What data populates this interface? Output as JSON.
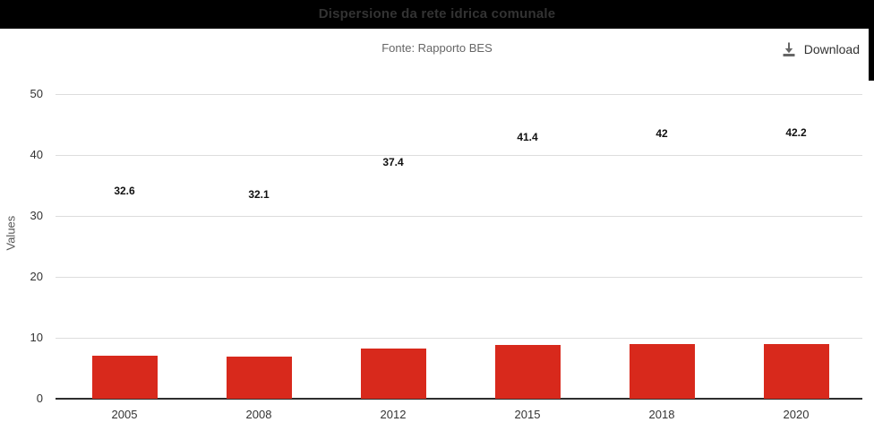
{
  "header": {
    "title": "Dispersione da rete idrica comunale",
    "source": "Fonte: Rapporto BES"
  },
  "toolbar": {
    "download_label": "Download",
    "download_icon": "download-icon"
  },
  "chart_data": {
    "type": "bar",
    "title": "Dispersione da rete idrica comunale",
    "subtitle": "Fonte: Rapporto BES",
    "categories": [
      "2005",
      "2008",
      "2012",
      "2015",
      "2018",
      "2020"
    ],
    "values": [
      32.6,
      32.1,
      37.4,
      41.4,
      42,
      42.2
    ],
    "value_labels": [
      "32.6",
      "32.1",
      "37.4",
      "41.4",
      "42",
      "42.2"
    ],
    "bar_rendered_values": [
      7.0,
      6.9,
      8.2,
      8.8,
      9.0,
      9.0
    ],
    "ylabel": "Values",
    "yticks": [
      0,
      10,
      20,
      30,
      40,
      50
    ],
    "ylim": [
      0,
      50
    ],
    "grid": true,
    "legend": false,
    "bar_color": "#d8291c"
  },
  "colors": {
    "titlebar_bg": "#000000",
    "title_text": "#333333",
    "bar": "#d8291c",
    "grid": "#dddddd",
    "axis": "#2e2e2e",
    "tick_text": "#333333",
    "muted_text": "#666666",
    "icon": "#666666"
  }
}
